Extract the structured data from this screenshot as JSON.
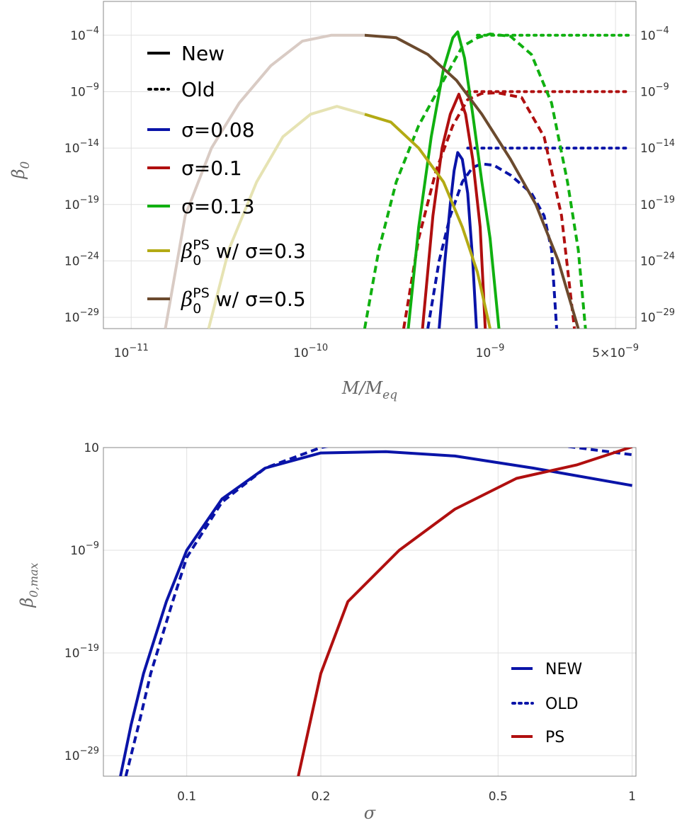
{
  "chart_data": [
    {
      "type": "line",
      "xscale": "log",
      "yscale": "log",
      "xlim": [
        7e-12,
        6.5e-09
      ],
      "ylim": [
        1e-30,
        0.1
      ],
      "xlabel": "M/M_eq",
      "xlabel_parts": {
        "main": "M/M",
        "sub": "eq"
      },
      "ylabel": "β_0",
      "ylabel_parts": {
        "main": "β",
        "sub": "0"
      },
      "xticks": [
        {
          "value": 1e-11,
          "base": "10",
          "exp": "−11",
          "coef": ""
        },
        {
          "value": 1e-10,
          "base": "10",
          "exp": "−10",
          "coef": ""
        },
        {
          "value": 1e-09,
          "base": "10",
          "exp": "−9",
          "coef": ""
        },
        {
          "value": 5e-09,
          "base": "10",
          "exp": "−9",
          "coef": "5×"
        }
      ],
      "yticks": [
        {
          "value": 0.0001,
          "base": "10",
          "exp": "−4"
        },
        {
          "value": 1e-09,
          "base": "10",
          "exp": "−9"
        },
        {
          "value": 1e-14,
          "base": "10",
          "exp": "−14"
        },
        {
          "value": 1e-19,
          "base": "10",
          "exp": "−19"
        },
        {
          "value": 1e-24,
          "base": "10",
          "exp": "−24"
        },
        {
          "value": 1e-29,
          "base": "10",
          "exp": "−29"
        }
      ],
      "grid": true,
      "legend_position": "upper-left",
      "legend": [
        {
          "label": "New",
          "style": "solid",
          "color": "#000000"
        },
        {
          "label": "Old",
          "style": "dotted",
          "color": "#000000"
        },
        {
          "label": "σ=0.08",
          "style": "solid",
          "color": "#0a14a8"
        },
        {
          "label": "σ=0.1",
          "style": "solid",
          "color": "#b00f0f"
        },
        {
          "label": "σ=0.13",
          "style": "solid",
          "color": "#10b010"
        },
        {
          "label": "β",
          "sub": "0",
          "sup": "PS",
          "rest": " w/ σ=0.3",
          "style": "solid",
          "color": "#b3aa14"
        },
        {
          "label": "β",
          "sub": "0",
          "sup": "PS",
          "rest": " w/ σ=0.5",
          "style": "solid",
          "color": "#6b4a2e"
        }
      ],
      "series": [
        {
          "sigma": 0.08,
          "color": "#0a14a8",
          "style": "solid",
          "points": [
            [
              5.2e-10,
              1e-30
            ],
            [
              5.6e-10,
              1e-24
            ],
            [
              6e-10,
              1e-19
            ],
            [
              6.3e-10,
              1e-16
            ],
            [
              6.6e-10,
              4e-15
            ],
            [
              7e-10,
              1e-15
            ],
            [
              7.5e-10,
              1e-18
            ],
            [
              8e-10,
              1e-24
            ],
            [
              8.4e-10,
              1e-30
            ]
          ]
        },
        {
          "sigma": 0.08,
          "color": "#0a14a8",
          "style": "dashed",
          "points": [
            [
              4.5e-10,
              1e-30
            ],
            [
              5.2e-10,
              1e-24
            ],
            [
              6e-10,
              1e-20
            ],
            [
              7e-10,
              1e-17
            ],
            [
              8e-10,
              2e-16
            ],
            [
              9e-10,
              4e-16
            ],
            [
              1.05e-09,
              3e-16
            ],
            [
              1.3e-09,
              4e-17
            ],
            [
              1.7e-09,
              1e-18
            ],
            [
              2e-09,
              1e-20
            ],
            [
              2.2e-09,
              1e-23
            ],
            [
              2.35e-09,
              1e-30
            ]
          ]
        },
        {
          "sigma": 0.08,
          "color": "#0a14a8",
          "style": "dotted",
          "points": [
            [
              7.5e-10,
              1e-14
            ],
            [
              6e-09,
              1e-14
            ]
          ]
        },
        {
          "sigma": 0.1,
          "color": "#b00f0f",
          "style": "solid",
          "points": [
            [
              4.2e-10,
              1e-30
            ],
            [
              4.8e-10,
              1e-20
            ],
            [
              5.4e-10,
              1e-14
            ],
            [
              6e-10,
              1e-11
            ],
            [
              6.7e-10,
              6e-10
            ],
            [
              7.3e-10,
              1e-11
            ],
            [
              8e-10,
              1e-15
            ],
            [
              8.8e-10,
              1e-21
            ],
            [
              9.4e-10,
              1e-30
            ]
          ]
        },
        {
          "sigma": 0.1,
          "color": "#b00f0f",
          "style": "dashed",
          "points": [
            [
              3.3e-10,
              1e-30
            ],
            [
              4e-10,
              1e-22
            ],
            [
              5e-10,
              1e-16
            ],
            [
              6.2e-10,
              1e-12
            ],
            [
              7.5e-10,
              2e-10
            ],
            [
              9e-10,
              7e-10
            ],
            [
              1.1e-09,
              8e-10
            ],
            [
              1.5e-09,
              3e-10
            ],
            [
              2e-09,
              1e-13
            ],
            [
              2.5e-09,
              1e-20
            ],
            [
              2.95e-09,
              1e-30
            ]
          ]
        },
        {
          "sigma": 0.1,
          "color": "#b00f0f",
          "style": "dotted",
          "points": [
            [
              7.5e-10,
              1e-09
            ],
            [
              6e-09,
              1e-09
            ]
          ]
        },
        {
          "sigma": 0.13,
          "color": "#10b010",
          "style": "solid",
          "points": [
            [
              3.5e-10,
              1e-30
            ],
            [
              4e-10,
              1e-21
            ],
            [
              4.7e-10,
              1e-13
            ],
            [
              5.5e-10,
              1e-07
            ],
            [
              6.2e-10,
              6e-05
            ],
            [
              6.6e-10,
              0.0002
            ],
            [
              7.2e-10,
              1e-06
            ],
            [
              8e-10,
              1e-11
            ],
            [
              9e-10,
              1e-17
            ],
            [
              1e-09,
              1e-22
            ],
            [
              1.12e-09,
              1e-30
            ]
          ]
        },
        {
          "sigma": 0.13,
          "color": "#10b010",
          "style": "dashed",
          "points": [
            [
              2e-10,
              1e-30
            ],
            [
              2.4e-10,
              1e-23
            ],
            [
              3e-10,
              1e-17
            ],
            [
              4e-10,
              1e-12
            ],
            [
              5.5e-10,
              1e-08
            ],
            [
              7e-10,
              1e-05
            ],
            [
              8.5e-10,
              6e-05
            ],
            [
              1e-09,
              0.00013
            ],
            [
              1.3e-09,
              8e-05
            ],
            [
              1.7e-09,
              2e-06
            ],
            [
              2.2e-09,
              1e-10
            ],
            [
              2.7e-09,
              1e-17
            ],
            [
              3.1e-09,
              1e-23
            ],
            [
              3.4e-09,
              1e-30
            ]
          ]
        },
        {
          "sigma": 0.13,
          "color": "#10b010",
          "style": "dotted",
          "points": [
            [
              8.5e-10,
              0.0001
            ],
            [
              6e-09,
              0.0001
            ]
          ]
        },
        {
          "sigma": 0.3,
          "color": "#b3aa14",
          "style": "solid",
          "label": "β0PS w/ σ=0.3",
          "points": [
            [
              2e-10,
              1e-11
            ],
            [
              2.8e-10,
              2e-12
            ],
            [
              4e-10,
              1e-14
            ],
            [
              5.5e-10,
              1e-17
            ],
            [
              7e-10,
              1e-21
            ],
            [
              8.5e-10,
              1e-25
            ],
            [
              1e-09,
              1e-30
            ]
          ]
        },
        {
          "sigma": 0.3,
          "color": "#e6e3b3",
          "style": "solid",
          "faded": true,
          "points": [
            [
              2.7e-11,
              1e-30
            ],
            [
              3.5e-11,
              1e-23
            ],
            [
              5e-11,
              1e-17
            ],
            [
              7e-11,
              1e-13
            ],
            [
              1e-10,
              1e-11
            ],
            [
              1.4e-10,
              5e-11
            ],
            [
              2e-10,
              1e-11
            ]
          ]
        },
        {
          "sigma": 0.5,
          "color": "#6b4a2e",
          "style": "solid",
          "label": "β0PS w/ σ=0.5",
          "points": [
            [
              2e-10,
              0.0001
            ],
            [
              3e-10,
              6e-05
            ],
            [
              4.5e-10,
              2e-06
            ],
            [
              6.5e-10,
              1e-08
            ],
            [
              9e-10,
              1e-11
            ],
            [
              1.3e-09,
              1e-15
            ],
            [
              1.8e-09,
              1e-19
            ],
            [
              2.4e-09,
              1e-24
            ],
            [
              3.1e-09,
              1e-30
            ]
          ]
        },
        {
          "sigma": 0.5,
          "color": "#d9cbc4",
          "style": "solid",
          "faded": true,
          "points": [
            [
              1.55e-11,
              1e-30
            ],
            [
              2e-11,
              1e-20
            ],
            [
              2.8e-11,
              1e-14
            ],
            [
              4e-11,
              1e-10
            ],
            [
              6e-11,
              2e-07
            ],
            [
              9e-11,
              3e-05
            ],
            [
              1.3e-10,
              0.0001
            ],
            [
              2e-10,
              0.0001
            ]
          ]
        }
      ]
    },
    {
      "type": "line",
      "xscale": "log",
      "yscale": "log",
      "xlim": [
        0.065,
        1.02
      ],
      "ylim": [
        1e-31,
        10.0
      ],
      "xlabel": "σ",
      "ylabel": "β_0,max",
      "ylabel_parts": {
        "main": "β",
        "sub": "0,max"
      },
      "xticks": [
        {
          "value": 0.1,
          "label": "0.1"
        },
        {
          "value": 0.2,
          "label": "0.2"
        },
        {
          "value": 0.5,
          "label": "0.5"
        },
        {
          "value": 1,
          "label": "1"
        }
      ],
      "yticks": [
        {
          "value": 10.0,
          "base": "10",
          "exp": ""
        },
        {
          "value": 1e-09,
          "base": "10",
          "exp": "−9"
        },
        {
          "value": 1e-19,
          "base": "10",
          "exp": "−19"
        },
        {
          "value": 1e-29,
          "base": "10",
          "exp": "−29"
        }
      ],
      "grid": true,
      "legend_position": "lower-right",
      "legend": [
        {
          "label": "NEW",
          "style": "solid",
          "color": "#0a14a8"
        },
        {
          "label": "OLD",
          "style": "dotted",
          "color": "#0a14a8"
        },
        {
          "label": "PS",
          "style": "solid",
          "color": "#b00f0f"
        }
      ],
      "series": [
        {
          "name": "NEW",
          "color": "#0a14a8",
          "style": "solid",
          "points": [
            [
              0.071,
              1e-31
            ],
            [
              0.075,
              1e-26
            ],
            [
              0.08,
              1e-21
            ],
            [
              0.09,
              1e-14
            ],
            [
              0.1,
              1e-09
            ],
            [
              0.12,
              0.0001
            ],
            [
              0.15,
              0.1
            ],
            [
              0.2,
              3.0
            ],
            [
              0.28,
              4.0
            ],
            [
              0.4,
              1.5
            ],
            [
              0.6,
              0.1
            ],
            [
              1.0,
              0.002
            ]
          ]
        },
        {
          "name": "OLD",
          "color": "#0a14a8",
          "style": "dashed",
          "points": [
            [
              0.073,
              1e-31
            ],
            [
              0.078,
              1e-26
            ],
            [
              0.083,
              1e-21
            ],
            [
              0.093,
              1e-14
            ],
            [
              0.1,
              2e-10
            ],
            [
              0.12,
              5e-05
            ],
            [
              0.15,
              0.1
            ],
            [
              0.2,
              10.0
            ],
            [
              0.33,
              600.0
            ],
            [
              0.5,
              100.0
            ],
            [
              0.75,
              10.0
            ],
            [
              1.0,
              2.0
            ]
          ]
        },
        {
          "name": "PS",
          "color": "#b00f0f",
          "style": "solid",
          "points": [
            [
              0.178,
              1e-31
            ],
            [
              0.2,
              1e-21
            ],
            [
              0.23,
              1e-14
            ],
            [
              0.3,
              1e-09
            ],
            [
              0.4,
              1e-05
            ],
            [
              0.55,
              0.01
            ],
            [
              0.75,
              0.2
            ],
            [
              1.0,
              12.0
            ]
          ]
        }
      ]
    }
  ]
}
